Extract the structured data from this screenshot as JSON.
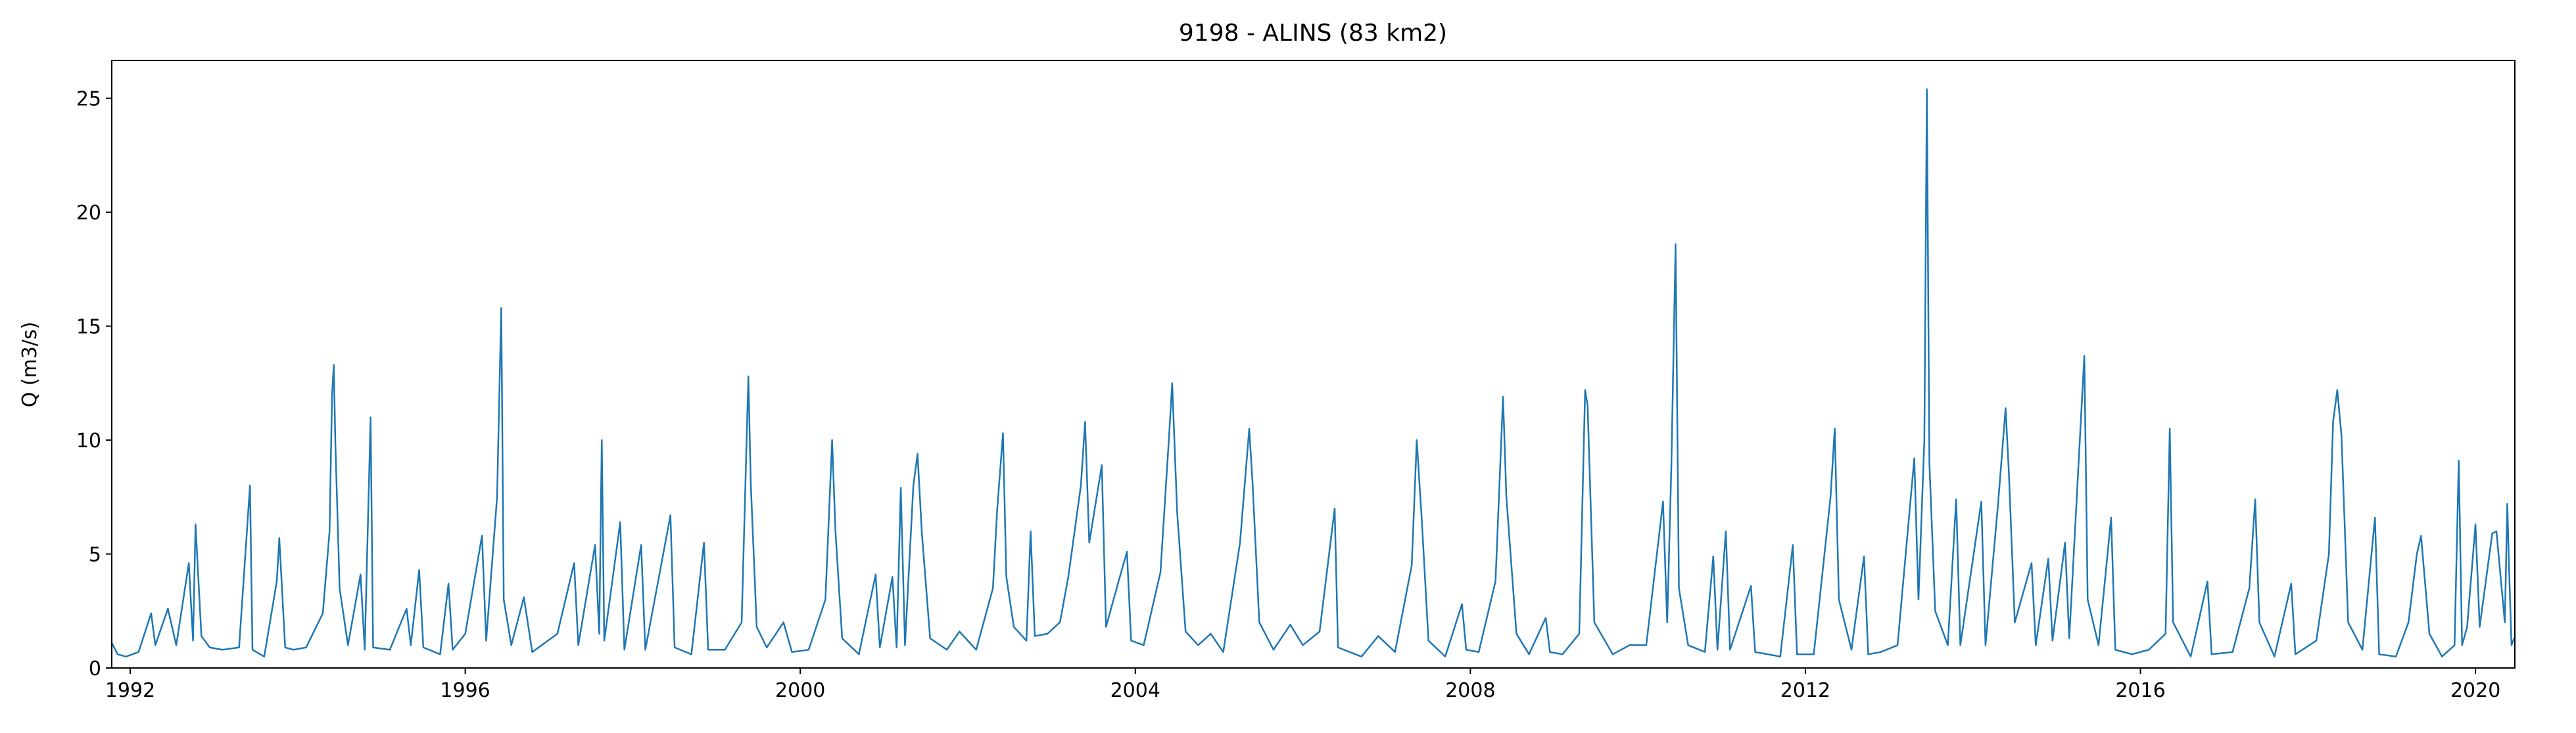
{
  "chart_data": {
    "type": "line",
    "title": "9198 - ALINS (83 km2)",
    "y_label": "Q (m3/s)",
    "color": "#1f77b4",
    "xlim": [
      1991.78,
      2020.47
    ],
    "xticks": [
      1992,
      1996,
      2000,
      2004,
      2008,
      2012,
      2016,
      2020
    ],
    "ylim": [
      0,
      26.66
    ],
    "yticks": [
      0,
      5,
      10,
      15,
      20,
      25
    ],
    "x": [
      1991.78,
      1991.85,
      1991.95,
      1992.1,
      1992.25,
      1992.3,
      1992.45,
      1992.55,
      1992.7,
      1992.75,
      1992.78,
      1992.85,
      1992.95,
      1993.1,
      1993.3,
      1993.43,
      1993.46,
      1993.6,
      1993.75,
      1993.78,
      1993.85,
      1993.95,
      1994.1,
      1994.3,
      1994.38,
      1994.41,
      1994.43,
      1994.45,
      1994.5,
      1994.6,
      1994.75,
      1994.8,
      1994.87,
      1994.9,
      1995.1,
      1995.3,
      1995.35,
      1995.45,
      1995.5,
      1995.7,
      1995.8,
      1995.85,
      1996.0,
      1996.2,
      1996.25,
      1996.38,
      1996.43,
      1996.46,
      1996.55,
      1996.7,
      1996.8,
      1997.1,
      1997.3,
      1997.35,
      1997.55,
      1997.6,
      1997.63,
      1997.66,
      1997.85,
      1997.9,
      1998.1,
      1998.15,
      1998.45,
      1998.5,
      1998.7,
      1998.85,
      1998.9,
      1999.1,
      1999.3,
      1999.38,
      1999.41,
      1999.48,
      1999.6,
      1999.8,
      1999.9,
      2000.1,
      2000.3,
      2000.38,
      2000.42,
      2000.5,
      2000.7,
      2000.9,
      2000.95,
      2001.1,
      2001.15,
      2001.2,
      2001.25,
      2001.35,
      2001.4,
      2001.45,
      2001.55,
      2001.75,
      2001.9,
      2002.1,
      2002.3,
      2002.35,
      2002.42,
      2002.46,
      2002.55,
      2002.7,
      2002.75,
      2002.8,
      2002.95,
      2003.1,
      2003.2,
      2003.35,
      2003.4,
      2003.45,
      2003.6,
      2003.65,
      2003.8,
      2003.9,
      2003.95,
      2004.1,
      2004.3,
      2004.4,
      2004.44,
      2004.5,
      2004.6,
      2004.75,
      2004.9,
      2005.05,
      2005.25,
      2005.36,
      2005.4,
      2005.48,
      2005.65,
      2005.85,
      2006.0,
      2006.2,
      2006.38,
      2006.42,
      2006.7,
      2006.9,
      2007.1,
      2007.3,
      2007.36,
      2007.42,
      2007.5,
      2007.7,
      2007.9,
      2007.95,
      2008.1,
      2008.3,
      2008.39,
      2008.43,
      2008.55,
      2008.7,
      2008.9,
      2008.95,
      2009.1,
      2009.3,
      2009.37,
      2009.4,
      2009.48,
      2009.7,
      2009.9,
      2010.1,
      2010.3,
      2010.35,
      2010.4,
      2010.45,
      2010.49,
      2010.6,
      2010.8,
      2010.9,
      2010.95,
      2011.05,
      2011.1,
      2011.35,
      2011.4,
      2011.7,
      2011.85,
      2011.9,
      2012.1,
      2012.3,
      2012.35,
      2012.4,
      2012.55,
      2012.7,
      2012.75,
      2012.9,
      2013.1,
      2013.3,
      2013.35,
      2013.42,
      2013.45,
      2013.48,
      2013.55,
      2013.7,
      2013.8,
      2013.85,
      2014.1,
      2014.15,
      2014.3,
      2014.39,
      2014.43,
      2014.5,
      2014.7,
      2014.75,
      2014.9,
      2014.95,
      2015.1,
      2015.15,
      2015.33,
      2015.37,
      2015.5,
      2015.65,
      2015.7,
      2015.9,
      2016.1,
      2016.3,
      2016.35,
      2016.39,
      2016.6,
      2016.8,
      2016.85,
      2017.1,
      2017.3,
      2017.37,
      2017.42,
      2017.6,
      2017.8,
      2017.85,
      2018.1,
      2018.25,
      2018.3,
      2018.35,
      2018.4,
      2018.48,
      2018.65,
      2018.8,
      2018.85,
      2019.05,
      2019.2,
      2019.3,
      2019.35,
      2019.45,
      2019.6,
      2019.75,
      2019.8,
      2019.84,
      2019.9,
      2020.0,
      2020.05,
      2020.2,
      2020.25,
      2020.35,
      2020.38,
      2020.4,
      2020.43,
      2020.46
    ],
    "values": [
      1.1,
      0.6,
      0.5,
      0.7,
      2.4,
      1.0,
      2.6,
      1.0,
      4.6,
      1.2,
      6.3,
      1.4,
      0.9,
      0.8,
      0.9,
      8.0,
      0.8,
      0.5,
      3.8,
      5.7,
      0.9,
      0.8,
      0.9,
      2.4,
      6.0,
      12.0,
      13.3,
      9.8,
      3.5,
      1.0,
      4.1,
      0.8,
      11.0,
      0.9,
      0.8,
      2.6,
      1.0,
      4.3,
      0.9,
      0.6,
      3.7,
      0.8,
      1.5,
      5.8,
      1.2,
      7.5,
      15.8,
      3.0,
      1.0,
      3.1,
      0.7,
      1.5,
      4.6,
      1.0,
      5.4,
      1.5,
      10.0,
      1.2,
      6.4,
      0.8,
      5.4,
      0.8,
      6.7,
      0.9,
      0.6,
      5.5,
      0.8,
      0.8,
      2.0,
      12.8,
      8.0,
      1.8,
      0.9,
      2.0,
      0.7,
      0.8,
      3.0,
      10.0,
      6.0,
      1.3,
      0.6,
      4.1,
      0.9,
      4.0,
      0.9,
      7.9,
      1.0,
      8.0,
      9.4,
      6.0,
      1.3,
      0.8,
      1.6,
      0.8,
      3.5,
      6.9,
      10.3,
      4.0,
      1.8,
      1.2,
      6.0,
      1.4,
      1.5,
      2.0,
      4.0,
      8.0,
      10.8,
      5.5,
      8.9,
      1.8,
      3.8,
      5.1,
      1.2,
      1.0,
      4.2,
      10.0,
      12.5,
      6.8,
      1.6,
      1.0,
      1.5,
      0.7,
      5.5,
      10.5,
      8.1,
      2.0,
      0.8,
      1.9,
      1.0,
      1.6,
      7.0,
      0.9,
      0.5,
      1.4,
      0.7,
      4.5,
      10.0,
      6.5,
      1.2,
      0.5,
      2.8,
      0.8,
      0.7,
      3.8,
      11.9,
      7.5,
      1.5,
      0.6,
      2.2,
      0.7,
      0.6,
      1.5,
      12.2,
      11.5,
      2.0,
      0.6,
      1.0,
      1.0,
      7.3,
      2.0,
      8.9,
      18.6,
      3.5,
      1.0,
      0.7,
      4.9,
      0.8,
      6.0,
      0.8,
      3.6,
      0.7,
      0.5,
      5.4,
      0.6,
      0.6,
      7.5,
      10.5,
      3.0,
      0.8,
      4.9,
      0.6,
      0.7,
      1.0,
      9.2,
      3.0,
      10.0,
      25.4,
      9.0,
      2.5,
      1.0,
      7.4,
      1.0,
      7.3,
      1.0,
      7.2,
      11.4,
      8.5,
      2.0,
      4.6,
      1.0,
      4.8,
      1.2,
      5.5,
      1.3,
      13.7,
      3.0,
      1.0,
      6.6,
      0.8,
      0.6,
      0.8,
      1.5,
      10.5,
      2.0,
      0.5,
      3.8,
      0.6,
      0.7,
      3.5,
      7.4,
      2.0,
      0.5,
      3.7,
      0.6,
      1.2,
      5.0,
      10.8,
      12.2,
      10.2,
      2.0,
      0.8,
      6.6,
      0.6,
      0.5,
      2.0,
      5.0,
      5.8,
      1.5,
      0.5,
      1.0,
      9.1,
      1.0,
      1.8,
      6.3,
      1.8,
      5.9,
      6.0,
      2.0,
      7.2,
      4.5,
      1.0,
      1.3
    ]
  }
}
